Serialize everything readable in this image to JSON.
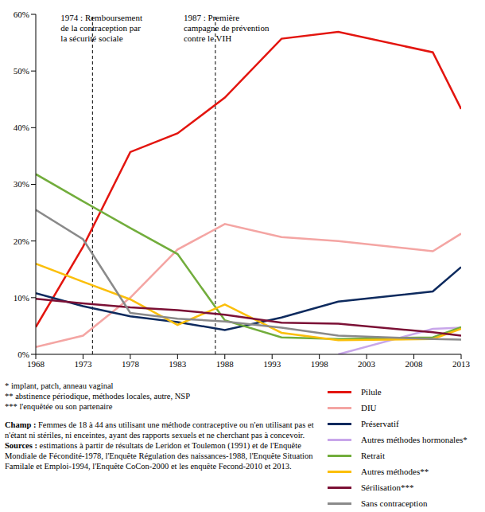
{
  "chart_data": {
    "type": "line",
    "x": [
      1968,
      1973,
      1978,
      1983,
      1988,
      1994,
      2000,
      2010,
      2013
    ],
    "xlim": [
      1968,
      2013
    ],
    "xticks": [
      1968,
      1973,
      1978,
      1983,
      1988,
      1993,
      1998,
      2003,
      2008,
      2013
    ],
    "ylim": [
      0,
      60
    ],
    "yticks": [
      {
        "value": 0,
        "label": "0%"
      },
      {
        "value": 10,
        "label": "10%"
      },
      {
        "value": 20,
        "label": "20%"
      },
      {
        "value": 30,
        "label": "30%"
      },
      {
        "value": 40,
        "label": "40%"
      },
      {
        "value": 50,
        "label": "50%"
      },
      {
        "value": 60,
        "label": "60%"
      }
    ],
    "grid": false,
    "legend": "bottom right",
    "series": [
      {
        "name": "Pilule",
        "color": "#e3150f",
        "values": [
          4.8,
          19,
          35.7,
          39,
          45.3,
          55.7,
          56.9,
          53.3,
          43.3
        ]
      },
      {
        "name": "DIU",
        "color": "#f4a5a3",
        "values": [
          1.3,
          3.3,
          10,
          18.5,
          23,
          20.7,
          20,
          18.2,
          21.3
        ]
      },
      {
        "name": "Préservatif",
        "color": "#0d2a5e",
        "values": [
          10.8,
          8.5,
          6.7,
          5.7,
          4.3,
          6.5,
          9.3,
          11.1,
          15.4
        ]
      },
      {
        "name": "Autres méthodes hormonales*",
        "color": "#c8a6ea",
        "values": [
          null,
          null,
          null,
          null,
          null,
          null,
          0,
          4.5,
          4.7
        ]
      },
      {
        "name": "Retrait",
        "color": "#72ad3c",
        "values": [
          31.8,
          27,
          22.3,
          17.7,
          6,
          3,
          2.7,
          3,
          4.8
        ]
      },
      {
        "name": "Autres méthodes**",
        "color": "#fbbf0a",
        "values": [
          16,
          12.8,
          9.7,
          5.2,
          8.8,
          3.8,
          2.5,
          2.7,
          4.5
        ]
      },
      {
        "name": "Sérilisation***",
        "color": "#7b1035",
        "values": [
          9.8,
          9,
          8.3,
          7.8,
          7,
          5.6,
          5.4,
          3.9,
          3.3
        ]
      },
      {
        "name": "Sans contraception",
        "color": "#8a8a8a",
        "values": [
          25.5,
          20.3,
          7.3,
          6.3,
          5.8,
          4.7,
          3.3,
          2.7,
          2.6
        ]
      }
    ],
    "annotations": [
      {
        "x": 1974,
        "lines": [
          "1974 : Remboursement",
          "de la contraception par",
          "la sécurité sociale"
        ]
      },
      {
        "x": 1987,
        "lines": [
          "1987 : Première",
          "campagne de prévention",
          "contre le VIH"
        ]
      }
    ]
  },
  "notes": {
    "footnotes": [
      "* implant, patch, anneau vaginal",
      "** abstinence périodique, méthodes locales, autre, NSP",
      "*** l'enquêtée ou son partenaire"
    ],
    "champ": {
      "label": "Champ :",
      "text": "Femmes de 18 à 44 ans utilisant une méthode contraceptive ou n'en utilisant pas et n'étant ni stériles, ni enceintes, ayant des rapports sexuels et ne cherchant pas à concevoir."
    },
    "sources": {
      "label": "Sources :",
      "text": "estimations à partir de résultats de Leridon et Toulemon (1991) et de l'Enquête Mondiale de Fécondité-1978, l'Enquête Régulation des naissances-1988, l'Enquête Situation Familale et Emploi-1994, l'Enquête CoCon-2000 et les enquête Fecond-2010 et 2013."
    }
  }
}
